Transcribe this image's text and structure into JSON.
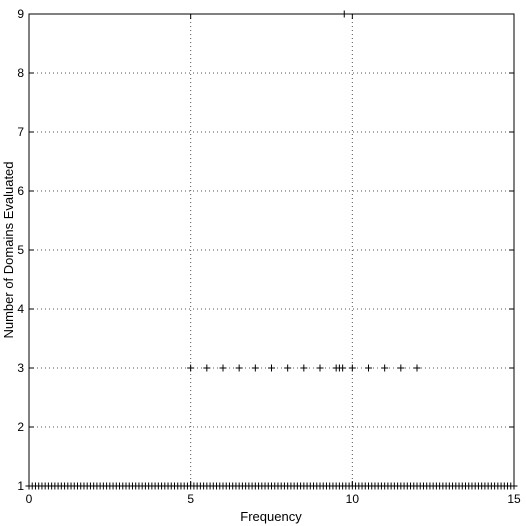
{
  "chart_data": {
    "type": "scatter",
    "xlabel": "Frequency",
    "ylabel": "Number of Domains Evaluated",
    "xlim": [
      0,
      15
    ],
    "ylim": [
      1,
      9
    ],
    "x_ticks": [
      0,
      5,
      10,
      15
    ],
    "y_ticks": [
      1,
      2,
      3,
      4,
      5,
      6,
      7,
      8,
      9
    ],
    "grid": true,
    "marker": "+",
    "series": [
      {
        "values": [
          {
            "x": 9.75,
            "y": 9
          },
          {
            "x": 5.0,
            "y": 3
          },
          {
            "x": 5.5,
            "y": 3
          },
          {
            "x": 6.0,
            "y": 3
          },
          {
            "x": 6.5,
            "y": 3
          },
          {
            "x": 7.0,
            "y": 3
          },
          {
            "x": 7.5,
            "y": 3
          },
          {
            "x": 8.0,
            "y": 3
          },
          {
            "x": 8.5,
            "y": 3
          },
          {
            "x": 9.0,
            "y": 3
          },
          {
            "x": 9.5,
            "y": 3
          },
          {
            "x": 9.6,
            "y": 3
          },
          {
            "x": 9.7,
            "y": 3
          },
          {
            "x": 10.0,
            "y": 3
          },
          {
            "x": 10.5,
            "y": 3
          },
          {
            "x": 11.0,
            "y": 3
          },
          {
            "x": 11.5,
            "y": 3
          },
          {
            "x": 12.0,
            "y": 3
          }
        ]
      },
      {
        "dense_range": {
          "y": 1,
          "x_from": 0,
          "x_to": 15,
          "step": 0.1
        }
      }
    ]
  }
}
